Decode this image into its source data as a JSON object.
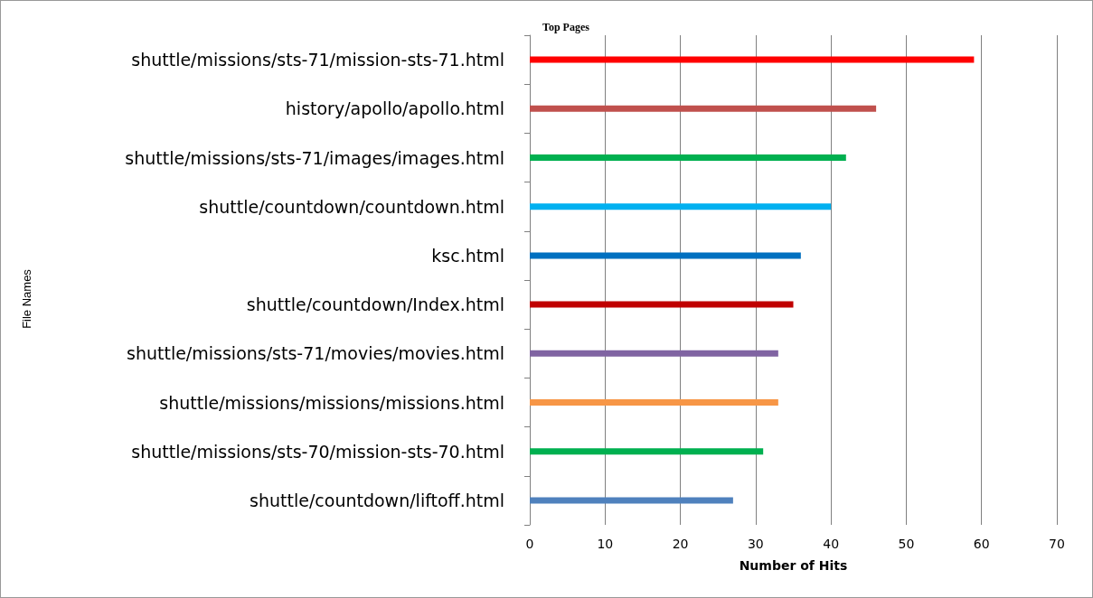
{
  "chart_data": {
    "type": "bar",
    "orientation": "horizontal",
    "title": "Top Pages",
    "xlabel": "Number of Hits",
    "annotations": [
      "File Names"
    ],
    "categories": [
      "shuttle/missions/sts-71/mission-sts-71.html",
      "history/apollo/apollo.html",
      "shuttle/missions/sts-71/images/images.html",
      "shuttle/countdown/countdown.html",
      "ksc.html",
      "shuttle/countdown/Index.html",
      "shuttle/missions/sts-71/movies/movies.html",
      "shuttle/missions/missions/missions.html",
      "shuttle/missions/sts-70/mission-sts-70.html",
      "shuttle/countdown/liftoff.html"
    ],
    "values": [
      59,
      46,
      42,
      40,
      36,
      35,
      33,
      33,
      31,
      27
    ],
    "colors": [
      "#ff0000",
      "#c0504d",
      "#00b050",
      "#00b0f0",
      "#0070c0",
      "#c00000",
      "#8064a2",
      "#f79646",
      "#00b050",
      "#4f81bd"
    ],
    "xlim": [
      0,
      70
    ],
    "xticks": [
      0,
      10,
      20,
      30,
      40,
      50,
      60,
      70
    ],
    "grid": "x"
  }
}
